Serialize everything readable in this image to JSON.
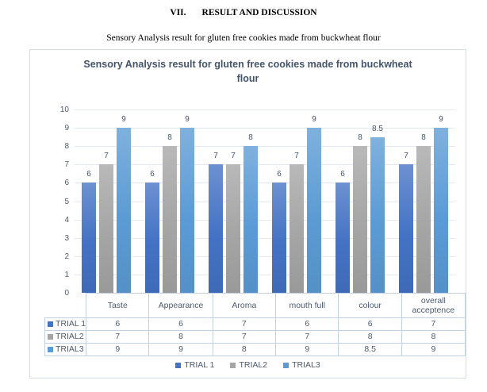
{
  "page": {
    "heading_number": "VII.",
    "heading_title": "RESULT AND DISCUSSION",
    "caption": "Sensory Analysis result for gluten free cookies made from buckwheat flour"
  },
  "chart_data": {
    "type": "bar",
    "title": "Sensory Analysis result for gluten free cookies made from buckwheat flour",
    "categories": [
      "Taste",
      "Appearance",
      "Aroma",
      "mouth full",
      "colour",
      "overall acceptence"
    ],
    "series": [
      {
        "name": "TRIAL 1",
        "color": "#4472C4",
        "values": [
          6,
          6,
          7,
          6,
          6,
          7
        ]
      },
      {
        "name": "TRIAL2",
        "color": "#A5A5A5",
        "values": [
          7,
          8,
          7,
          7,
          8,
          8
        ]
      },
      {
        "name": "TRIAL3",
        "color": "#5B9BD5",
        "values": [
          9,
          9,
          8,
          9,
          8.5,
          9
        ]
      }
    ],
    "ylim": [
      0,
      10
    ],
    "ytick_step": 1,
    "grid": true,
    "legend_position": "bottom",
    "data_table": true,
    "data_labels": true,
    "colors": {
      "title_text": "#44546A",
      "axis_text": "#4D5A6D",
      "gridline": "#E4E9F1",
      "table_border": "#C3D0E2",
      "frame_border": "#D7DDE7"
    }
  }
}
